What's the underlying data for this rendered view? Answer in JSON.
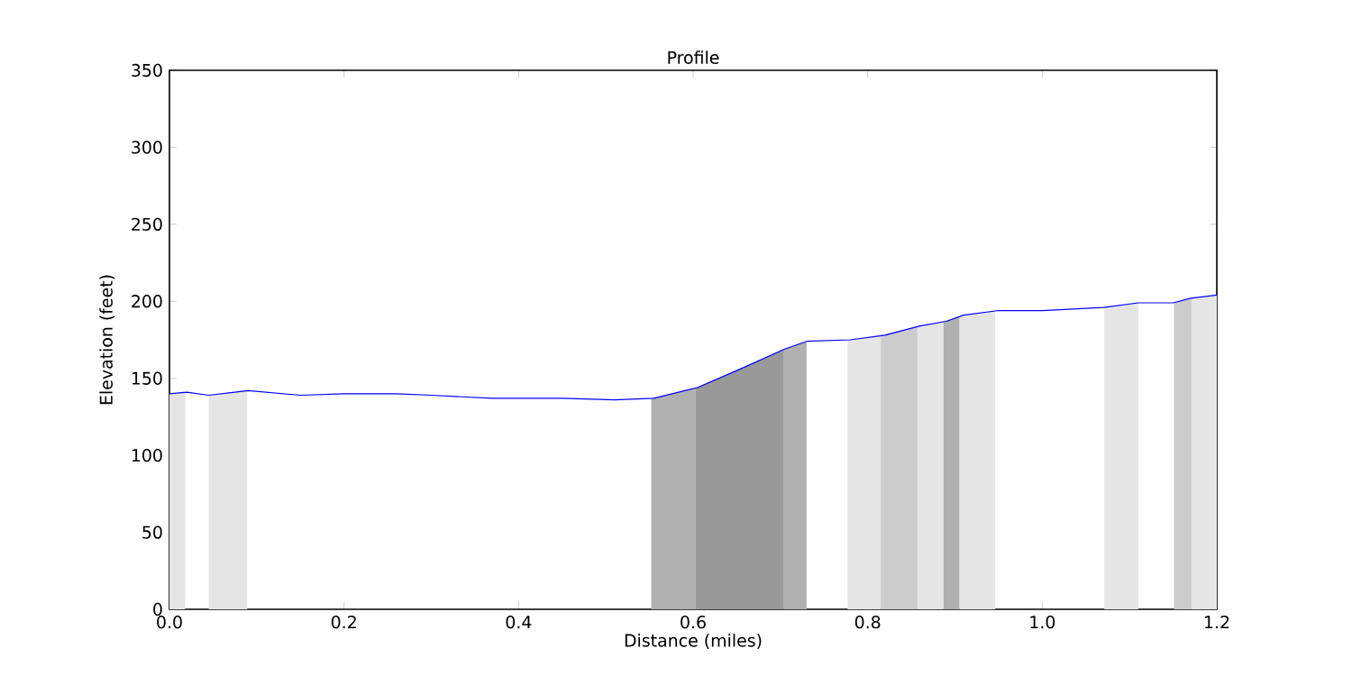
{
  "chart_data": {
    "type": "line",
    "title": "Profile",
    "xlabel": "Distance (miles)",
    "ylabel": "Elevation (feet)",
    "xlim": [
      0,
      1.2
    ],
    "ylim": [
      0,
      350
    ],
    "xticks": [
      {
        "value": 0,
        "label": "0.0"
      },
      {
        "value": 0.2,
        "label": "0.2"
      },
      {
        "value": 0.4,
        "label": "0.4"
      },
      {
        "value": 0.6,
        "label": "0.6"
      },
      {
        "value": 0.8,
        "label": "0.8"
      },
      {
        "value": 1.0,
        "label": "1.0"
      },
      {
        "value": 1.2,
        "label": "1.2"
      }
    ],
    "yticks": [
      0,
      50,
      100,
      150,
      200,
      250,
      300,
      350
    ],
    "grid": false,
    "marker": "none",
    "line_style": "solid",
    "series": [
      {
        "type": "area",
        "color": "#e5e5e5",
        "x": [
          0,
          0.018,
          0.03,
          0.045,
          0.089,
          0.43,
          0.777,
          0.815,
          0.836,
          0.857,
          0.887,
          0.896,
          0.905,
          0.946,
          1.01,
          1.071,
          1.11,
          1.13,
          1.171,
          1.2
        ],
        "values": [
          140,
          141,
          null,
          139,
          142,
          null,
          175,
          178,
          null,
          184,
          187,
          null,
          190,
          194,
          null,
          196,
          199,
          null,
          202,
          204
        ]
      },
      {
        "type": "area",
        "color": "#cccccc",
        "x": [
          0.815,
          0.857,
          1.0,
          1.151,
          1.171
        ],
        "values": [
          178,
          184,
          null,
          199,
          202
        ]
      },
      {
        "type": "area",
        "color": "#b0b0b0",
        "x": [
          0.552,
          0.603,
          0.65,
          0.704,
          0.73,
          0.8,
          0.887,
          0.905
        ],
        "values": [
          137,
          144,
          null,
          169,
          174,
          null,
          187,
          190
        ]
      },
      {
        "type": "area",
        "color": "#999999",
        "x": [
          0.603,
          0.65,
          0.704
        ],
        "values": [
          144,
          155,
          169
        ]
      },
      {
        "color": "#0000ff",
        "x": [
          0,
          0.02,
          0.045,
          0.09,
          0.15,
          0.2,
          0.26,
          0.3,
          0.37,
          0.45,
          0.51,
          0.555,
          0.605,
          0.65,
          0.705,
          0.73,
          0.78,
          0.82,
          0.86,
          0.89,
          0.91,
          0.95,
          1.0,
          1.07,
          1.11,
          1.15,
          1.17,
          1.2
        ],
        "values": [
          140,
          141,
          139,
          142,
          139,
          140,
          140,
          139,
          137,
          137,
          136,
          137,
          144,
          155,
          169,
          174,
          175,
          178,
          184,
          187,
          191,
          194,
          194,
          196,
          199,
          199,
          202,
          204
        ]
      }
    ]
  }
}
